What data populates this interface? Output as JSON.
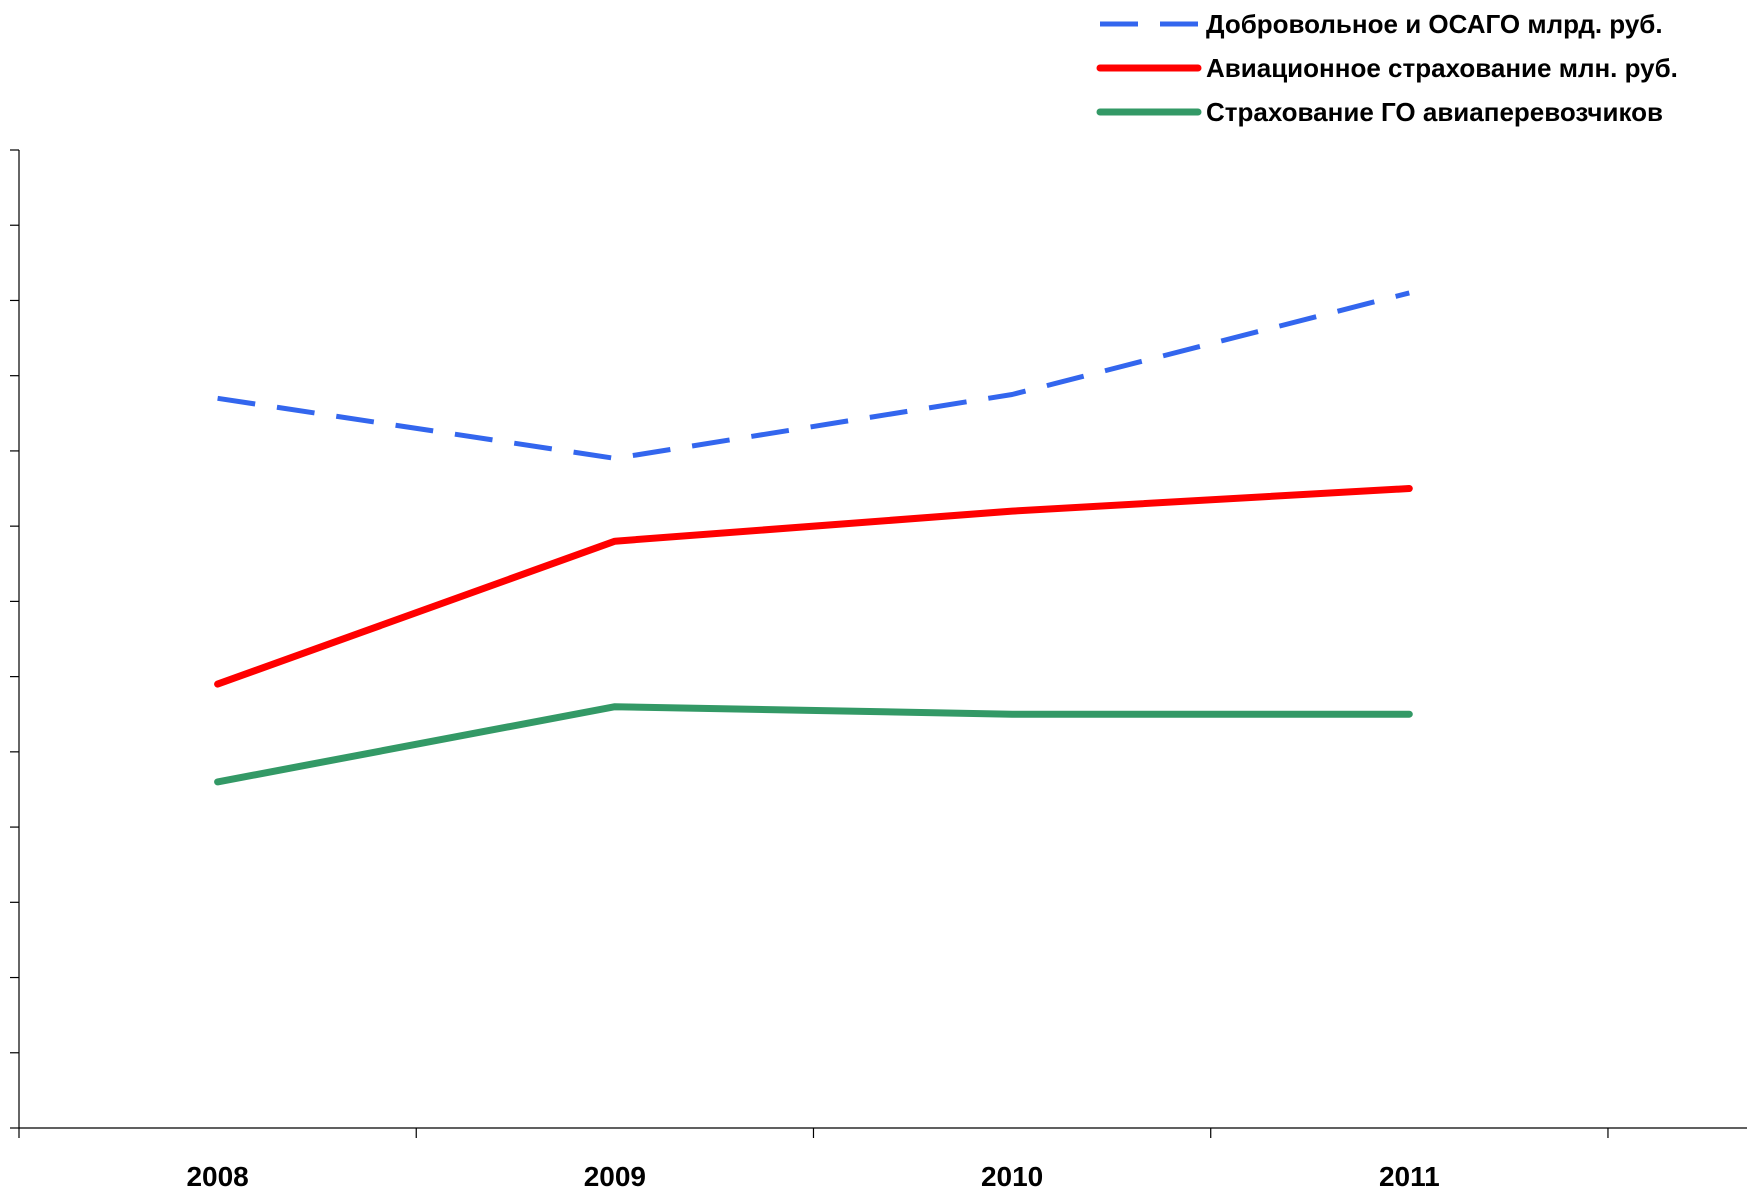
{
  "chart_data": {
    "type": "line",
    "categories": [
      "2008",
      "2009",
      "2010",
      "2011"
    ],
    "ylim": [
      0,
      13
    ],
    "y_ticks_count": 13,
    "grid": false,
    "legend_position": "top-right",
    "series": [
      {
        "name": "Добровольное и ОСАГО млрд. руб.",
        "values": [
          9.7,
          8.9,
          9.75,
          11.1
        ],
        "color": "#3366ee",
        "dash": "dashed"
      },
      {
        "name": "Авиационное страхование млн. руб.",
        "values": [
          5.9,
          7.8,
          8.2,
          8.5
        ],
        "color": "#ff0000",
        "dash": "solid"
      },
      {
        "name": "Страхование ГО авиаперевозчиков",
        "values": [
          4.6,
          5.6,
          5.5,
          5.5
        ],
        "color": "#339966",
        "dash": "solid"
      }
    ]
  }
}
